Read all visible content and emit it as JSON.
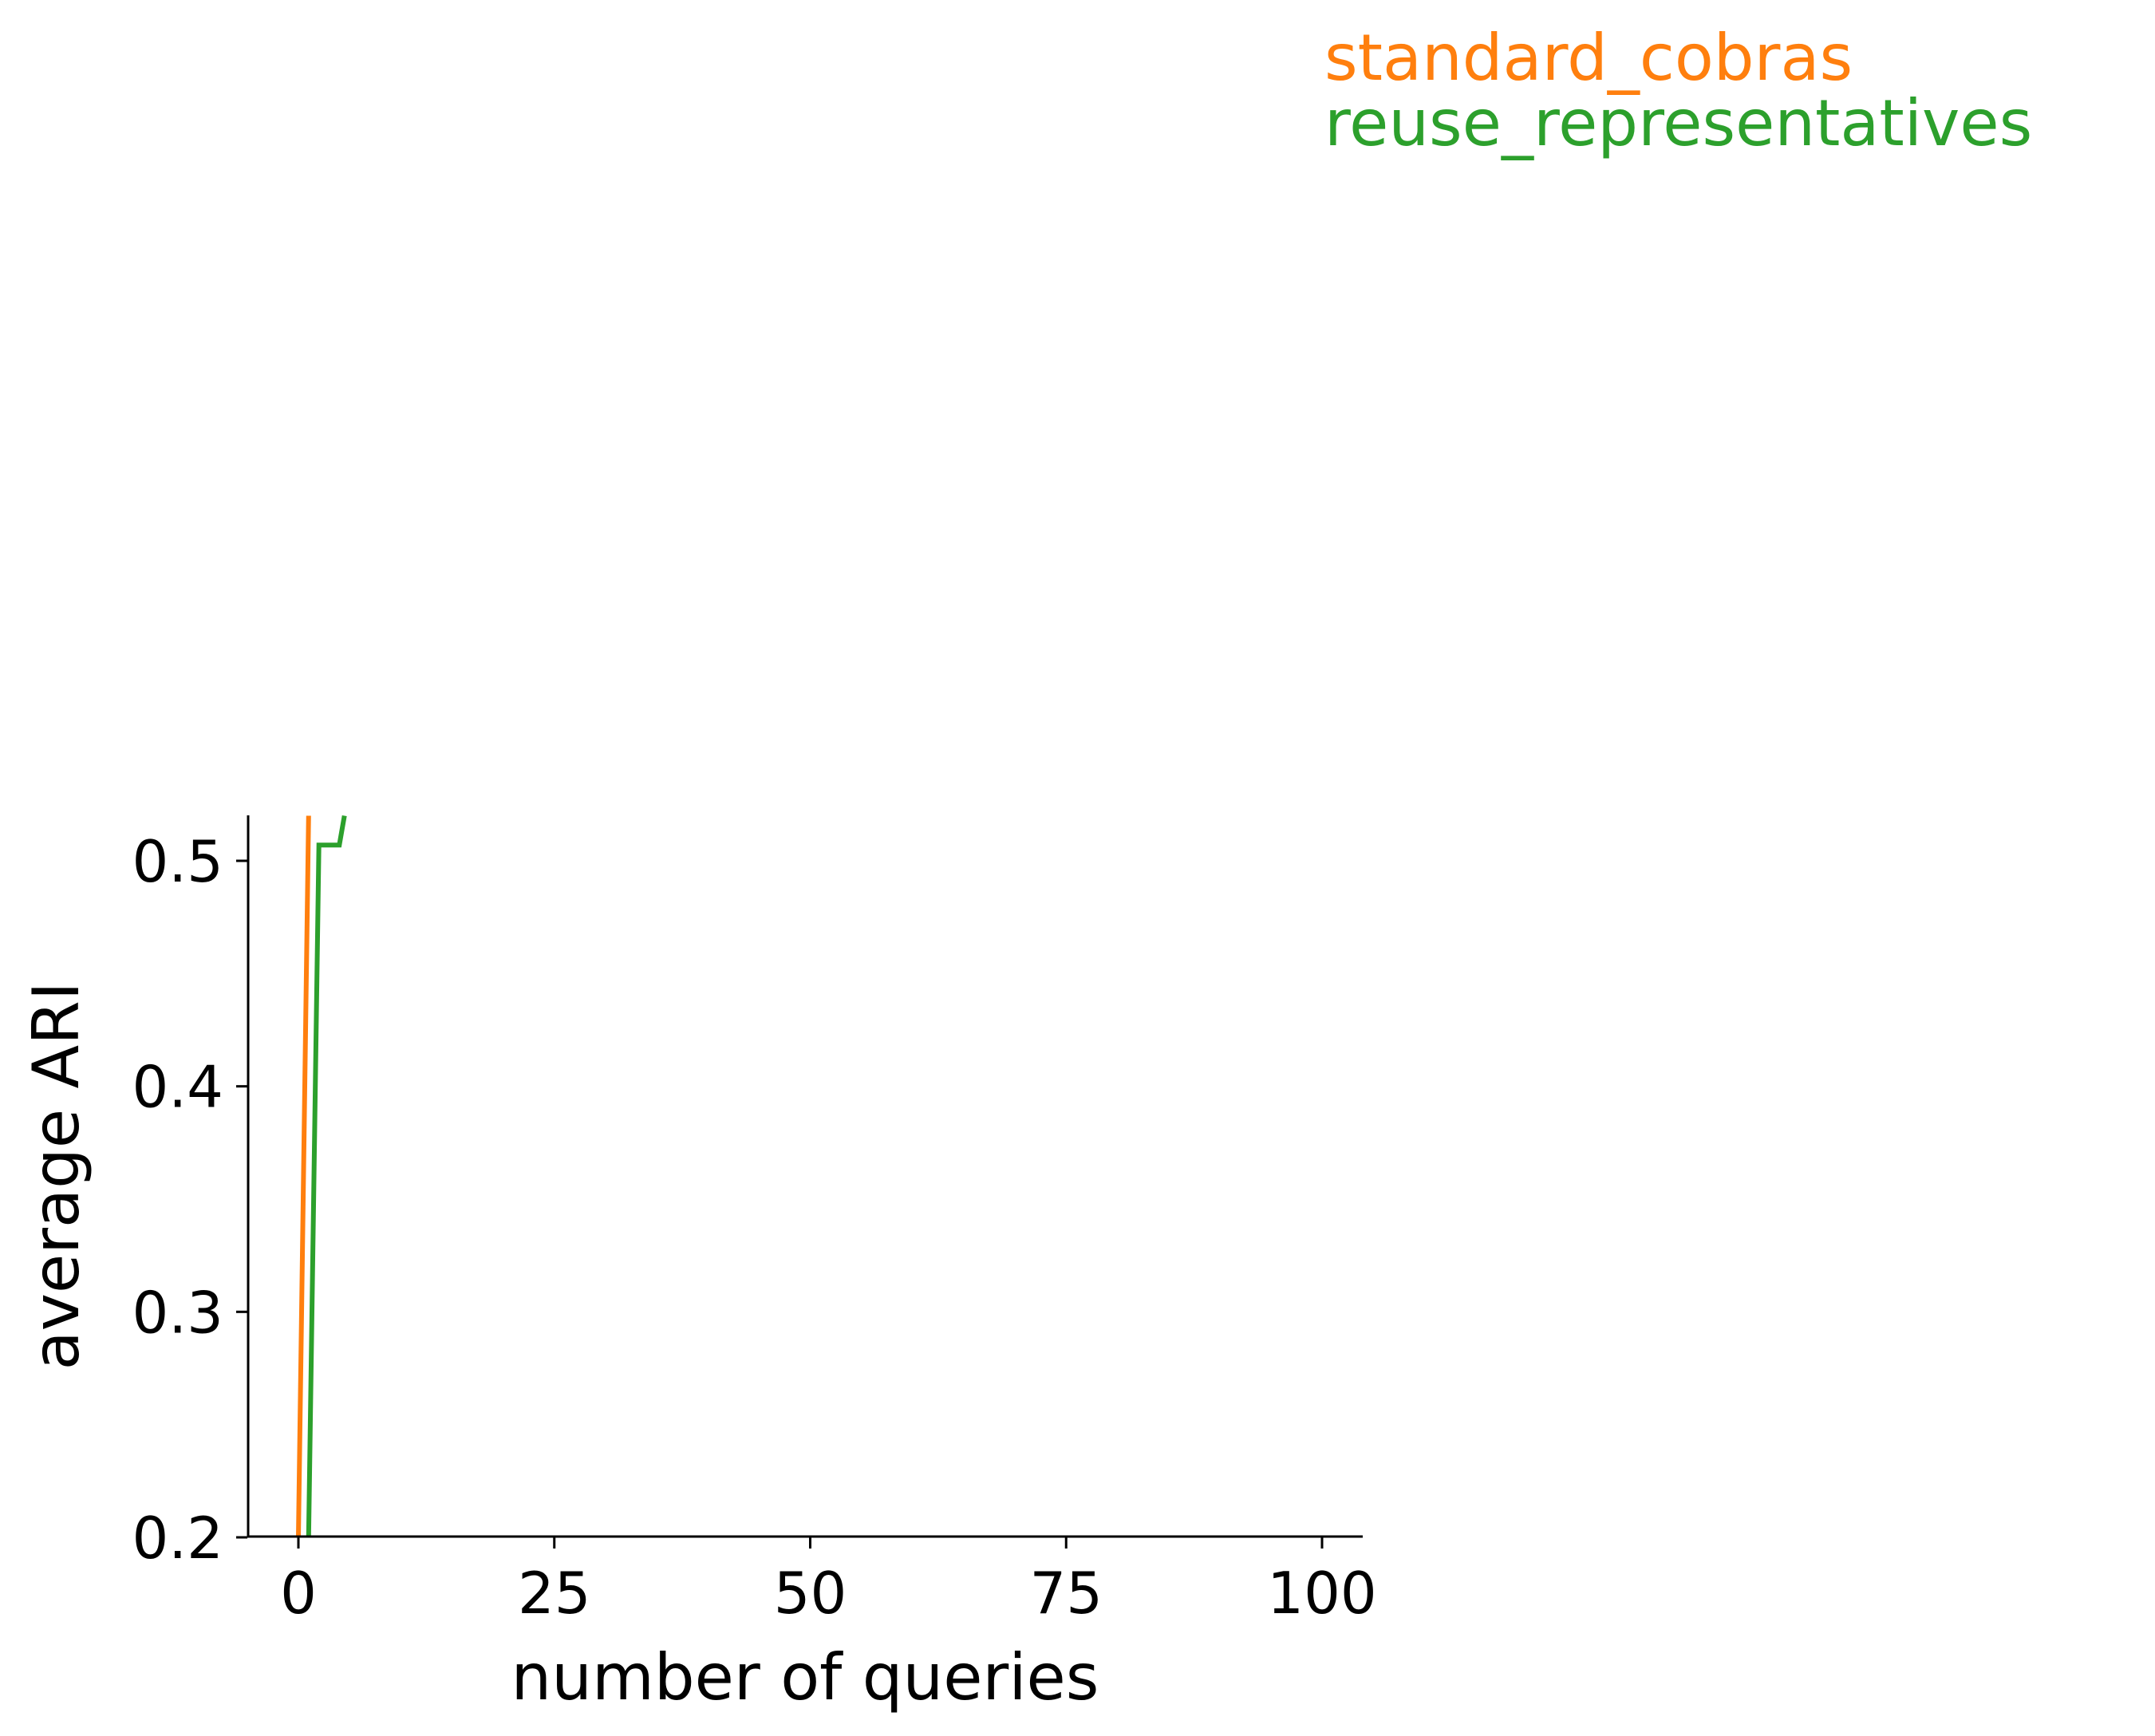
{
  "chart_data": {
    "type": "line",
    "title": "",
    "xlabel": "number of queries",
    "ylabel": "average ARI",
    "xlim": [
      -5,
      104
    ],
    "ylim": [
      0.2,
      0.52
    ],
    "xticks": [
      0,
      25,
      50,
      75,
      100
    ],
    "xtick_labels": [
      "0",
      "25",
      "50",
      "75",
      "100"
    ],
    "yticks": [
      0.2,
      0.3,
      0.4,
      0.5
    ],
    "ytick_labels": [
      "0.2",
      "0.3",
      "0.4",
      "0.5"
    ],
    "grid": false,
    "legend_placement": "top-right",
    "series": [
      {
        "name": "standard_cobras",
        "color": "#ff7f0e",
        "x": [
          0,
          1
        ],
        "y": [
          0.2,
          0.52
        ]
      },
      {
        "name": "reuse_representatives",
        "color": "#2ca02c",
        "x": [
          1,
          2,
          4,
          4.5
        ],
        "y": [
          0.2,
          0.507,
          0.507,
          0.52
        ]
      }
    ]
  }
}
